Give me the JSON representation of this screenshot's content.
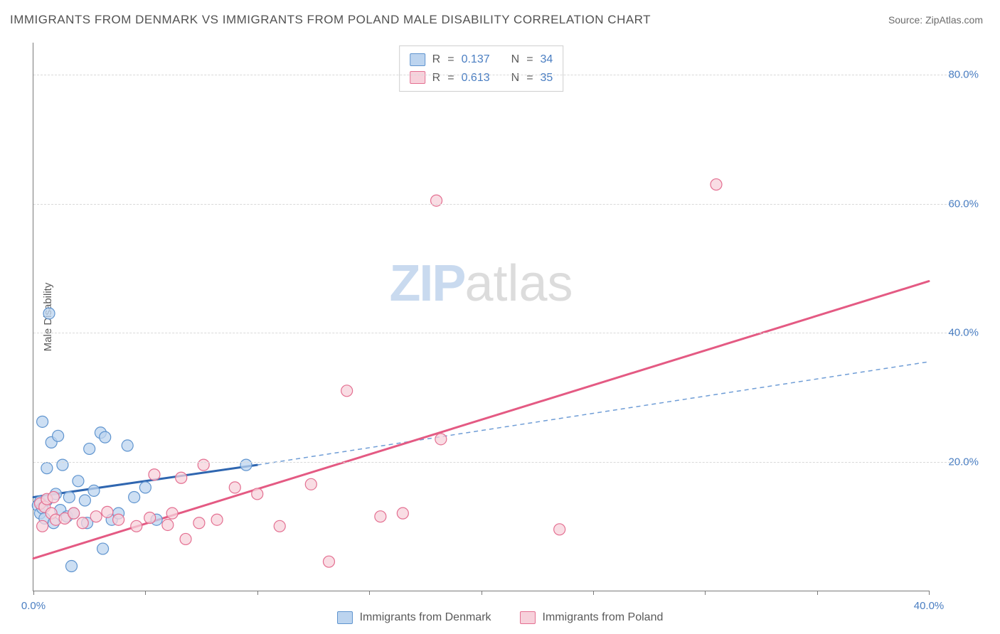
{
  "title": "IMMIGRANTS FROM DENMARK VS IMMIGRANTS FROM POLAND MALE DISABILITY CORRELATION CHART",
  "source_label": "Source:",
  "source_site": "ZipAtlas.com",
  "watermark_a": "ZIP",
  "watermark_b": "atlas",
  "chart": {
    "type": "scatter",
    "x_min": 0,
    "x_max": 40,
    "y_min": 0,
    "y_max": 85,
    "y_ticks": [
      20,
      40,
      60,
      80
    ],
    "y_tick_labels": [
      "20.0%",
      "40.0%",
      "60.0%",
      "80.0%"
    ],
    "x_ticks": [
      0,
      5,
      10,
      15,
      20,
      25,
      30,
      35,
      40
    ],
    "x_tick_labels_visible": {
      "0": "0.0%",
      "40": "40.0%"
    },
    "y_axis_title": "Male Disability",
    "background_color": "#ffffff",
    "grid_color": "#d9d9d9",
    "axis_color": "#7a7a7a",
    "tick_label_color": "#4a7ec2",
    "marker_radius": 8,
    "marker_stroke_width": 1.2,
    "series": [
      {
        "name": "Immigrants from Denmark",
        "fill": "#bcd4ef",
        "stroke": "#5f94cf",
        "r": 0.137,
        "n": 34,
        "trend": {
          "x1": 0,
          "y1": 14.5,
          "x2": 10,
          "y2": 19.5,
          "dash_x2": 40,
          "dash_y2": 35.5,
          "solid_color": "#2f66b0",
          "solid_width": 3,
          "dash_color": "#6f9dd6",
          "dash_width": 1.5,
          "dash_pattern": "6 5"
        },
        "points": [
          [
            0.2,
            13.2
          ],
          [
            0.3,
            12.0
          ],
          [
            0.3,
            13.8
          ],
          [
            0.4,
            26.2
          ],
          [
            0.4,
            12.8
          ],
          [
            0.5,
            11.2
          ],
          [
            0.6,
            19.0
          ],
          [
            0.6,
            14.0
          ],
          [
            0.7,
            43.0
          ],
          [
            0.8,
            23.0
          ],
          [
            0.9,
            10.5
          ],
          [
            1.0,
            15.0
          ],
          [
            1.1,
            24.0
          ],
          [
            1.2,
            12.5
          ],
          [
            1.3,
            19.5
          ],
          [
            1.5,
            11.5
          ],
          [
            1.6,
            14.5
          ],
          [
            1.7,
            3.8
          ],
          [
            1.8,
            12.0
          ],
          [
            2.0,
            17.0
          ],
          [
            2.3,
            14.0
          ],
          [
            2.4,
            10.5
          ],
          [
            2.5,
            22.0
          ],
          [
            2.7,
            15.5
          ],
          [
            3.0,
            24.5
          ],
          [
            3.1,
            6.5
          ],
          [
            3.2,
            23.8
          ],
          [
            3.5,
            11.0
          ],
          [
            3.8,
            12.0
          ],
          [
            4.2,
            22.5
          ],
          [
            4.5,
            14.5
          ],
          [
            5.0,
            16.0
          ],
          [
            5.5,
            11.0
          ],
          [
            9.5,
            19.5
          ]
        ]
      },
      {
        "name": "Immigrants from Poland",
        "fill": "#f7d1db",
        "stroke": "#e46f91",
        "r": 0.613,
        "n": 35,
        "trend": {
          "x1": 0,
          "y1": 5.0,
          "x2": 40,
          "y2": 48.0,
          "solid_color": "#e45a83",
          "solid_width": 3
        },
        "points": [
          [
            0.3,
            13.5
          ],
          [
            0.4,
            10.0
          ],
          [
            0.5,
            13.0
          ],
          [
            0.6,
            14.2
          ],
          [
            0.8,
            12.0
          ],
          [
            0.9,
            14.5
          ],
          [
            1.0,
            11.0
          ],
          [
            1.4,
            11.2
          ],
          [
            1.8,
            12.0
          ],
          [
            2.2,
            10.5
          ],
          [
            2.8,
            11.5
          ],
          [
            3.3,
            12.2
          ],
          [
            3.8,
            11.0
          ],
          [
            4.6,
            10.0
          ],
          [
            5.2,
            11.3
          ],
          [
            5.4,
            18.0
          ],
          [
            6.0,
            10.2
          ],
          [
            6.2,
            12.0
          ],
          [
            6.6,
            17.5
          ],
          [
            6.8,
            8.0
          ],
          [
            7.4,
            10.5
          ],
          [
            7.6,
            19.5
          ],
          [
            8.2,
            11.0
          ],
          [
            9.0,
            16.0
          ],
          [
            10.0,
            15.0
          ],
          [
            11.0,
            10.0
          ],
          [
            12.4,
            16.5
          ],
          [
            13.2,
            4.5
          ],
          [
            14.0,
            31.0
          ],
          [
            15.5,
            11.5
          ],
          [
            16.5,
            12.0
          ],
          [
            18.0,
            60.5
          ],
          [
            18.2,
            23.5
          ],
          [
            23.5,
            9.5
          ],
          [
            30.5,
            63.0
          ]
        ]
      }
    ]
  },
  "legend": {
    "r_label": "R",
    "n_label": "N",
    "eq": "="
  }
}
